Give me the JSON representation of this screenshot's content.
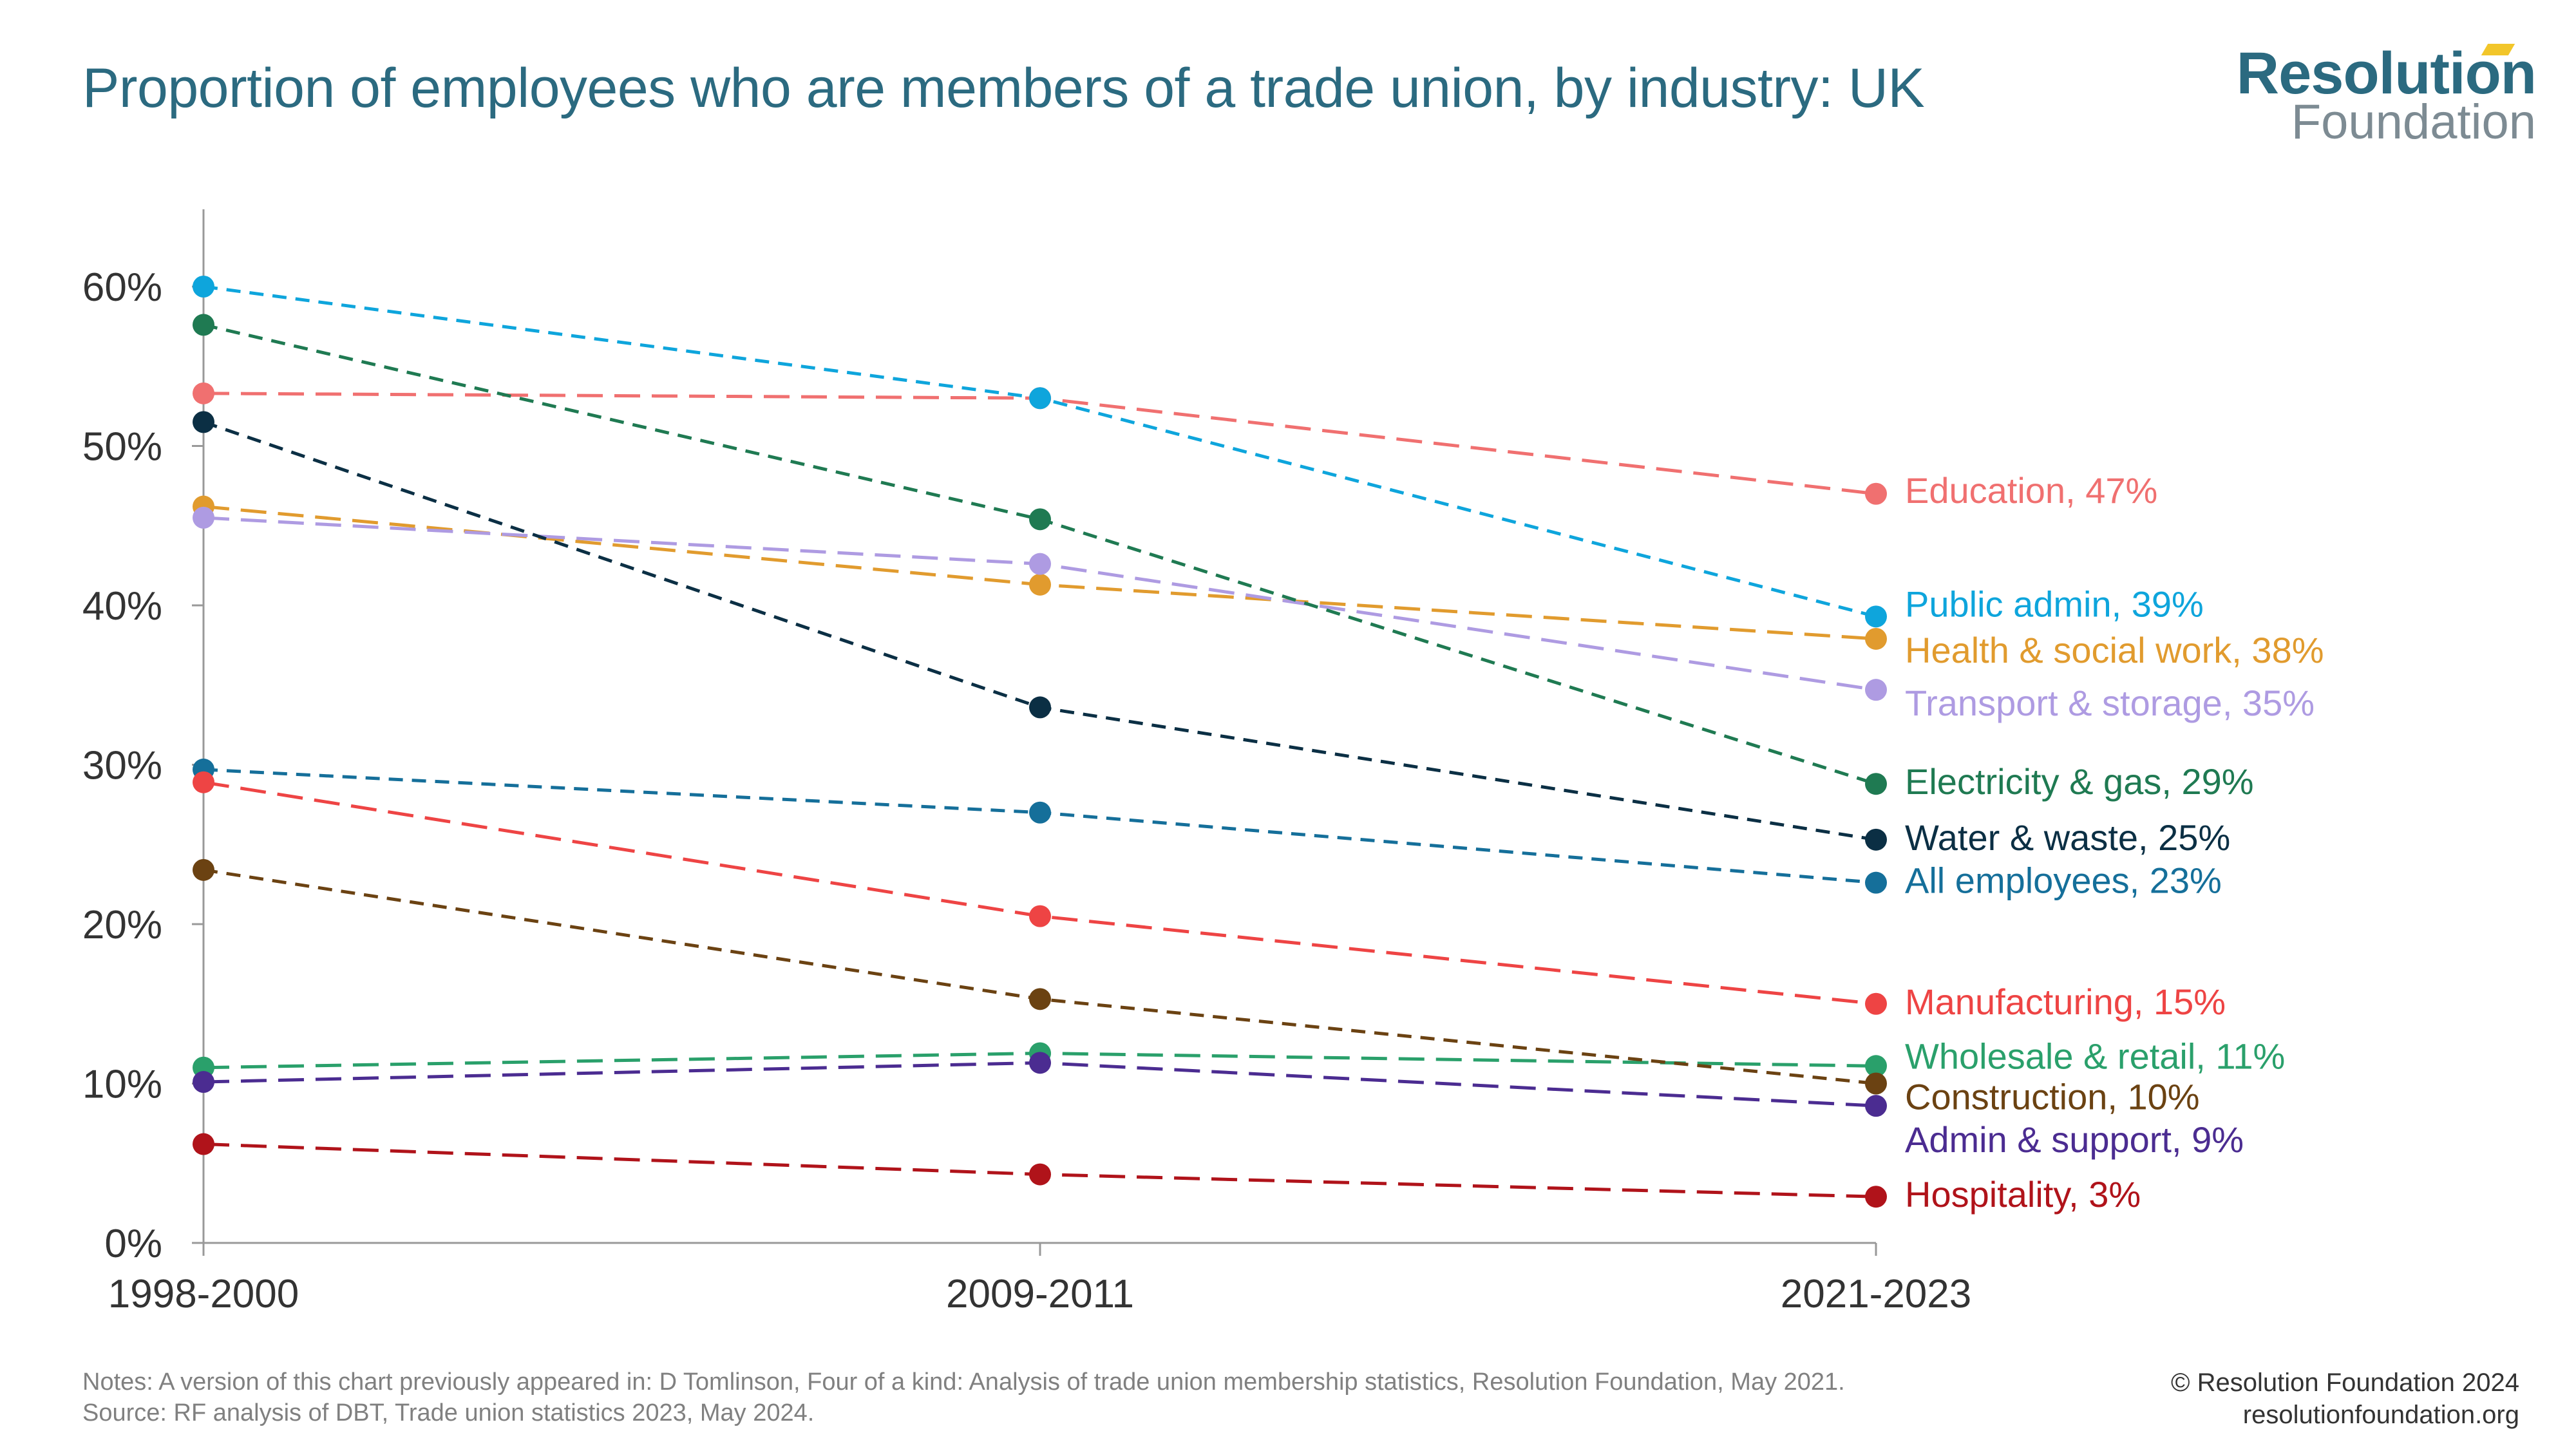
{
  "header": {
    "title": "Proportion of employees who are members of a trade union, by industry: UK"
  },
  "logo": {
    "line1": "Resolution",
    "line2": "Foundation"
  },
  "footer": {
    "note_line1": "Notes: A version of this chart previously appeared in: D Tomlinson, Four of a kind: Analysis of trade union membership statistics, Resolution Foundation, May 2021.",
    "note_line2": "Source: RF analysis of DBT, Trade union statistics 2023, May 2024.",
    "copyright_line1": "© Resolution Foundation 2024",
    "copyright_line2": "resolutionfoundation.org"
  },
  "colors": {
    "title": "#2b6a80",
    "axis": "#999999",
    "tick_text": "#333333"
  },
  "chart_data": {
    "type": "line",
    "categories": [
      "1998-2000",
      "2009-2011",
      "2021-2023"
    ],
    "ylim": [
      0,
      65
    ],
    "yticks": [
      0,
      10,
      20,
      30,
      40,
      50,
      60
    ],
    "ytick_labels": [
      "0%",
      "10%",
      "20%",
      "30%",
      "40%",
      "50%",
      "60%"
    ],
    "grid": false,
    "series": [
      {
        "name": "Education",
        "label": "Education, 47%",
        "values": [
          53.3,
          53.0,
          47.0
        ],
        "color": "#f07070",
        "dash": "long"
      },
      {
        "name": "Public admin",
        "label": "Public admin, 39%",
        "values": [
          60.0,
          53.0,
          39.3
        ],
        "color": "#0ea5dc",
        "dash": "short"
      },
      {
        "name": "Health & social work",
        "label": "Health & social work, 38%",
        "values": [
          46.2,
          41.3,
          37.9
        ],
        "color": "#e19b2e",
        "dash": "long"
      },
      {
        "name": "Transport & storage",
        "label": "Transport & storage, 35%",
        "values": [
          45.5,
          42.6,
          34.7
        ],
        "color": "#ae9be2",
        "dash": "long"
      },
      {
        "name": "Electricity & gas",
        "label": "Electricity & gas, 29%",
        "values": [
          57.6,
          45.4,
          28.8
        ],
        "color": "#1f7a52",
        "dash": "short"
      },
      {
        "name": "Water & waste",
        "label": "Water & waste, 25%",
        "values": [
          51.5,
          33.6,
          25.3
        ],
        "color": "#0b2f44",
        "dash": "short"
      },
      {
        "name": "All employees",
        "label": "All employees, 23%",
        "values": [
          29.7,
          27.0,
          22.6
        ],
        "color": "#156f9a",
        "dash": "short"
      },
      {
        "name": "Manufacturing",
        "label": "Manufacturing, 15%",
        "values": [
          28.9,
          20.5,
          15.0
        ],
        "color": "#ee4444",
        "dash": "long"
      },
      {
        "name": "Wholesale & retail",
        "label": "Wholesale & retail, 11%",
        "values": [
          11.0,
          11.9,
          11.1
        ],
        "color": "#2aa06b",
        "dash": "long"
      },
      {
        "name": "Construction",
        "label": "Construction, 10%",
        "values": [
          23.4,
          15.3,
          10.0
        ],
        "color": "#6b4212",
        "dash": "short"
      },
      {
        "name": "Admin & support",
        "label": "Admin & support, 9%",
        "values": [
          10.1,
          11.3,
          8.6
        ],
        "color": "#4b2c91",
        "dash": "long"
      },
      {
        "name": "Hospitality",
        "label": "Hospitality, 3%",
        "values": [
          6.2,
          4.3,
          2.9
        ],
        "color": "#b0131a",
        "dash": "long"
      }
    ]
  }
}
